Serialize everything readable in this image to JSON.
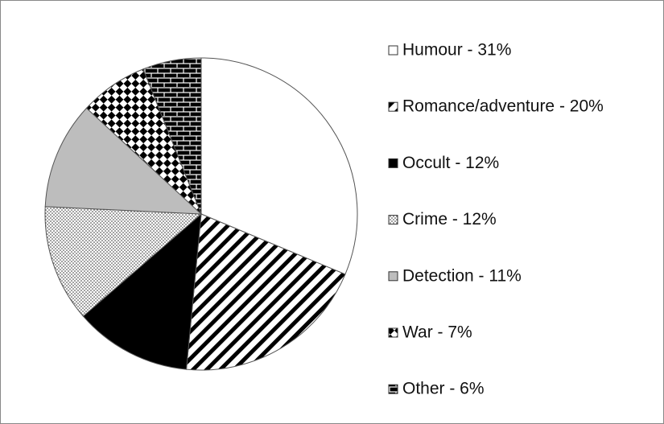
{
  "chart_data": {
    "type": "pie",
    "categories": [
      "Humour - 31%",
      "Romance/adventure - 20%",
      "Occult - 12%",
      "Crime - 12%",
      "Detection - 11%",
      "War - 7%",
      "Other - 6%"
    ],
    "values": [
      31,
      20,
      12,
      12,
      11,
      7,
      6
    ],
    "patterns": [
      "white",
      "diagonal",
      "black",
      "dots",
      "gray",
      "checker",
      "brick"
    ],
    "legend": "right"
  }
}
